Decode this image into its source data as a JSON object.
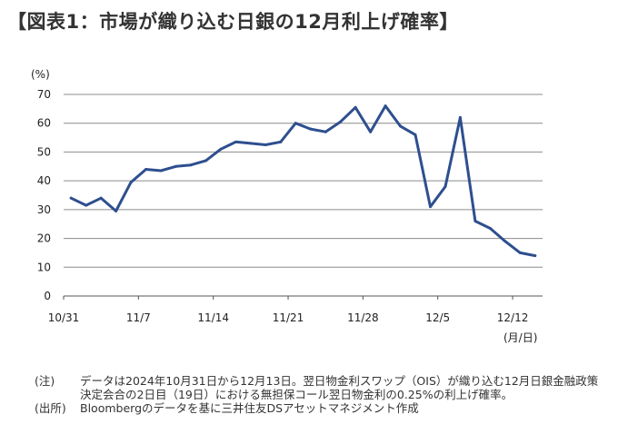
{
  "title": "【図表1：市場が織り込む日銀の12月利上げ確率】",
  "chart_data": {
    "type": "line",
    "ylabel": "(%)",
    "xlabel": "(月/日)",
    "ylim": [
      0,
      70
    ],
    "yticks": [
      0,
      10,
      20,
      30,
      40,
      50,
      60,
      70
    ],
    "xtick_labels": [
      "10/31",
      "11/7",
      "11/14",
      "11/21",
      "11/28",
      "12/5",
      "12/12"
    ],
    "grid": true,
    "color": "#2e4f8f",
    "series": [
      {
        "x": [
          "10/31",
          "11/1",
          "11/4",
          "11/5",
          "11/6",
          "11/7",
          "11/8",
          "11/11",
          "11/12",
          "11/13",
          "11/14",
          "11/15",
          "11/18",
          "11/19",
          "11/20",
          "11/21",
          "11/22",
          "11/25",
          "11/26",
          "11/27",
          "11/28",
          "11/29",
          "12/2",
          "12/3",
          "12/4",
          "12/5",
          "12/6",
          "12/9",
          "12/10",
          "12/11",
          "12/12",
          "12/13"
        ],
        "values": [
          34,
          31.5,
          34,
          29.5,
          39.5,
          44,
          43.5,
          45,
          45.5,
          47,
          51,
          53.5,
          53,
          52.5,
          53.5,
          60,
          58,
          57,
          60.5,
          65.5,
          57,
          66,
          59,
          56,
          31,
          38,
          62,
          26,
          23.5,
          19,
          15,
          14
        ]
      }
    ]
  },
  "notes": [
    {
      "key": "(注)",
      "text": "データは2024年10月31日から12月13日。翌日物金利スワップ（OIS）が織り込む12月日銀金融政策決定会合の2日目（19日）における無担保コール翌日物金利の0.25%の利上げ確率。"
    },
    {
      "key": "(出所)",
      "text": "Bloombergのデータを基に三井住友DSアセットマネジメント作成"
    }
  ]
}
